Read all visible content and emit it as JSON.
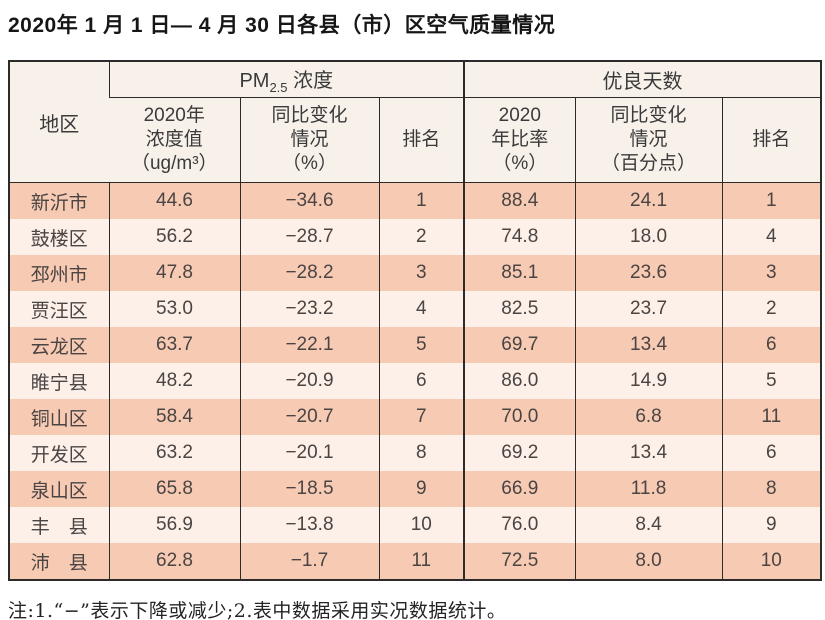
{
  "page": {
    "title": "2020年 1 月 1 日— 4 月 30 日各县（市）区空气质量情况",
    "footnote": "注:1.“−”表示下降或减少;2.表中数据采用实况数据统计。"
  },
  "table": {
    "region_header": "地区",
    "pm25_group": {
      "prefix": "PM",
      "sub": "2.5",
      "suffix": " 浓度"
    },
    "good_days_group": "优良天数",
    "sub_headers": {
      "pm25_value": "2020年\n浓度值\n（ug/m³）",
      "pm25_change": "同比变化\n情况\n（%）",
      "pm25_rank": "排名",
      "good_rate": "2020\n年比率\n（%）",
      "good_change": "同比变化\n情况\n（百分点）",
      "good_rank": "排名"
    },
    "field_names": [
      "region",
      "pm25-value",
      "pm25-change",
      "pm25-rank",
      "good-days-rate",
      "good-days-change",
      "good-days-rank"
    ],
    "rows": [
      [
        "新沂市",
        "44.6",
        "−34.6",
        "1",
        "88.4",
        "24.1",
        "1"
      ],
      [
        "鼓楼区",
        "56.2",
        "−28.7",
        "2",
        "74.8",
        "18.0",
        "4"
      ],
      [
        "邳州市",
        "47.8",
        "−28.2",
        "3",
        "85.1",
        "23.6",
        "3"
      ],
      [
        "贾汪区",
        "53.0",
        "−23.2",
        "4",
        "82.5",
        "23.7",
        "2"
      ],
      [
        "云龙区",
        "63.7",
        "−22.1",
        "5",
        "69.7",
        "13.4",
        "6"
      ],
      [
        "睢宁县",
        "48.2",
        "−20.9",
        "6",
        "86.0",
        "14.9",
        "5"
      ],
      [
        "铜山区",
        "58.4",
        "−20.7",
        "7",
        "70.0",
        "6.8",
        "11"
      ],
      [
        "开发区",
        "63.2",
        "−20.1",
        "8",
        "69.2",
        "13.4",
        "6"
      ],
      [
        "泉山区",
        "65.8",
        "−18.5",
        "9",
        "66.9",
        "11.8",
        "8"
      ],
      [
        "丰　县",
        "56.9",
        "−13.8",
        "10",
        "76.0",
        "8.4",
        "9"
      ],
      [
        "沛　县",
        "62.8",
        "−1.7",
        "11",
        "72.5",
        "8.0",
        "10"
      ]
    ]
  },
  "colors": {
    "row_odd_bg": "#f7cab4",
    "row_even_bg": "#fcf0e9",
    "header_bg": "#f8f1ea",
    "border": "#2d2b2a"
  }
}
